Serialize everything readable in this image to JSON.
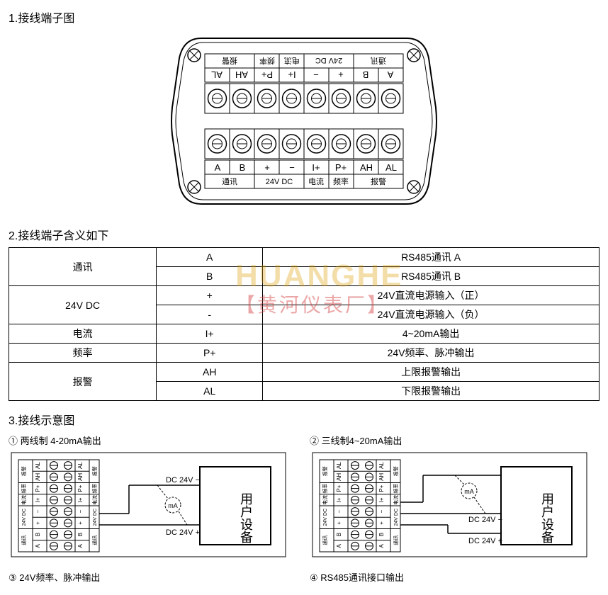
{
  "headings": {
    "h1": "1.接线端子图",
    "h2": "2.接线端子含义如下",
    "h3": "3.接线示意图"
  },
  "terminal": {
    "top_row1": [
      "A",
      "B",
      "+",
      "−",
      "I+",
      "P+",
      "AH",
      "AL"
    ],
    "top_row2": [
      "通讯",
      "24V DC",
      "电流",
      "频率",
      "报警"
    ],
    "bot_row1": [
      "A",
      "B",
      "+",
      "−",
      "I+",
      "P+",
      "AH",
      "AL"
    ],
    "bot_row2": [
      "通讯",
      "24V DC",
      "电流",
      "频率",
      "报警"
    ]
  },
  "table": {
    "rows": [
      {
        "group": "通讯",
        "rowspan": 2,
        "cells": [
          [
            "A",
            "RS485通讯 A"
          ],
          [
            "B",
            "RS485通讯 B"
          ]
        ]
      },
      {
        "group": "24V DC",
        "rowspan": 2,
        "cells": [
          [
            "+",
            "24V直流电源输入（正）"
          ],
          [
            "-",
            "24V直流电源输入（负）"
          ]
        ]
      },
      {
        "group": "电流",
        "rowspan": 1,
        "cells": [
          [
            "I+",
            "4~20mA输出"
          ]
        ]
      },
      {
        "group": "频率",
        "rowspan": 1,
        "cells": [
          [
            "P+",
            "24V频率、脉冲输出"
          ]
        ]
      },
      {
        "group": "报警",
        "rowspan": 2,
        "cells": [
          [
            "AH",
            "上限报警输出"
          ],
          [
            "AL",
            "下限报警输出"
          ]
        ]
      }
    ]
  },
  "watermark": {
    "line1": "HUANGHE",
    "line2": "【黄河仪表厂】"
  },
  "wiring": {
    "c1": "① 两线制 4-20mA输出",
    "c2": "② 三线制4~20mA输出",
    "c3": "③ 24V频率、脉冲输出",
    "c4": "④ RS485通讯接口输出",
    "device_label": "用户设备",
    "dc_minus": "DC 24V −",
    "dc_plus": "DC 24V +",
    "mA": "mA",
    "side_labels_top": [
      "AL",
      "AH",
      "P+",
      "I+",
      "−",
      "+",
      "B",
      "A"
    ],
    "side_labels_bot": [
      "AL",
      "AH",
      "P+",
      "I+",
      "−",
      "+",
      "B",
      "A"
    ],
    "side_groups": [
      "报警",
      "频率",
      "电流",
      "24V DC",
      "通讯"
    ]
  },
  "colors": {
    "stroke": "#000000",
    "bg": "#ffffff",
    "watermark_yellow": "rgba(220,160,10,0.35)",
    "watermark_red": "rgba(210,60,60,0.45)"
  }
}
